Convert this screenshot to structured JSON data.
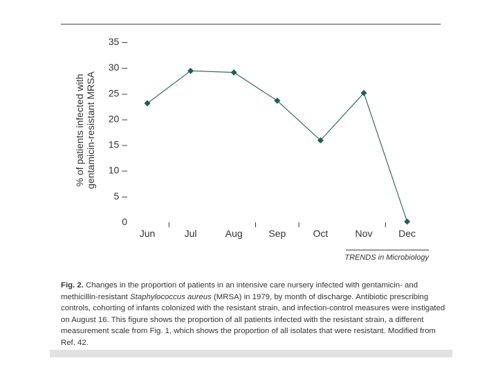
{
  "chart_data": {
    "type": "line",
    "title": "",
    "xlabel": "",
    "ylabel_lines": [
      "% of patients infected with",
      "gentamicin-resistant MRSA"
    ],
    "categories": [
      "Jun",
      "Jul",
      "Aug",
      "Sep",
      "Oct",
      "Nov",
      "Dec"
    ],
    "series": [
      {
        "name": "Patients infected with gentamicin-resistant MRSA (%)",
        "values": [
          23,
          29.3,
          29,
          23.5,
          15.8,
          25,
          0
        ]
      }
    ],
    "ylim": [
      0,
      35
    ],
    "yticks": [
      0,
      5,
      10,
      15,
      20,
      25,
      30,
      35
    ],
    "ytick_labels": [
      "0",
      "5 –",
      "10 –",
      "15 –",
      "20 –",
      "25 –",
      "30 –",
      "35 –"
    ],
    "grid": false,
    "colors": {
      "line": "#1f5f55",
      "marker": "#1f5f55",
      "axis": "#333333"
    }
  },
  "source": "TRENDS in Microbiology",
  "caption": {
    "label": "Fig. 2.",
    "text_before": " Changes in the proportion of patients in an intensive care nursery infected with gentamicin- and methicillin-resistant ",
    "species": "Staphylococcus aureus",
    "text_after": " (MRSA) in 1979, by month of discharge. Antibiotic prescribing controls, cohorting of infants colonized with the resistant strain, and infection-control measures were instigated on August 16. This figure shows the proportion of all patients infected with the resistant strain, a different measurement scale from Fig. 1, which shows the proportion of all isolates that were resistant. Modified from Ref. 42."
  }
}
